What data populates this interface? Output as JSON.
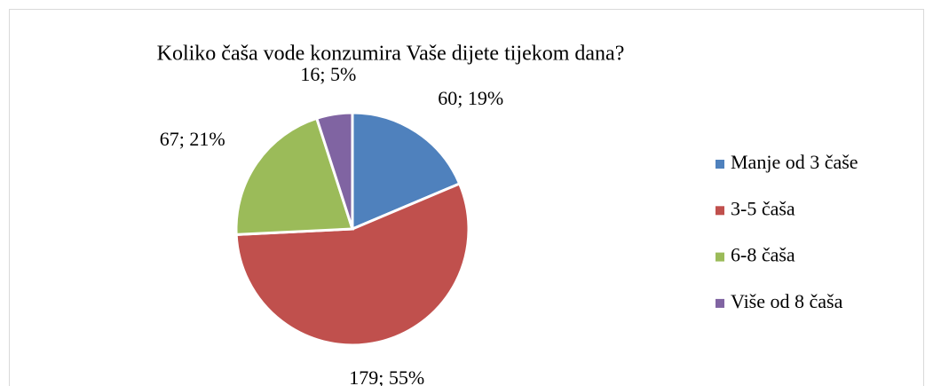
{
  "chart_data": {
    "type": "pie",
    "title": "Koliko čaša vode konzumira Vaše dijete tijekom dana?",
    "categories": [
      "Manje od 3 čaše",
      "3-5 čaša",
      "6-8 čaša",
      "Više od 8 čaša"
    ],
    "values": [
      60,
      179,
      67,
      16
    ],
    "value_labels": [
      "60; 19%",
      "179; 55%",
      "67; 21%",
      "16; 5%"
    ],
    "colors": [
      "#4f81bd",
      "#c0504d",
      "#9bbb59",
      "#8064a2"
    ],
    "legend": "right"
  }
}
